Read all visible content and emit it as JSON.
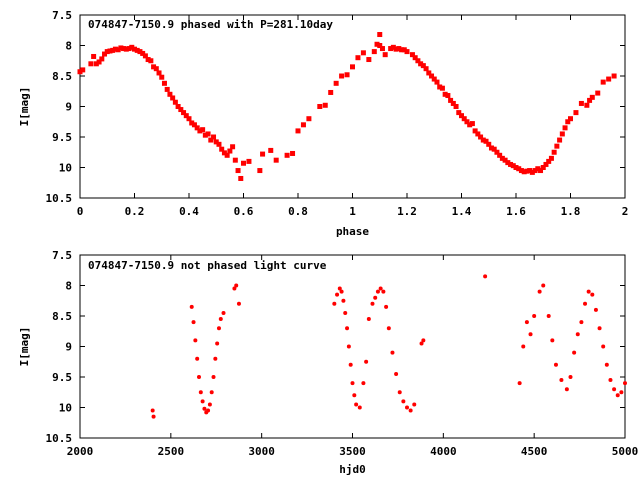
{
  "chart_data": [
    {
      "type": "scatter",
      "title": "074847-7150.9 phased with P=281.10day",
      "xlabel": "phase",
      "ylabel": "I[mag]",
      "xlim": [
        0,
        2
      ],
      "ylim": [
        7.5,
        10.5
      ],
      "y_inverted": true,
      "xticks": [
        "0",
        "0.2",
        "0.4",
        "0.6",
        "0.8",
        "1",
        "1.2",
        "1.4",
        "1.6",
        "1.8",
        "2"
      ],
      "yticks": [
        "7.5",
        "8",
        "8.5",
        "9",
        "9.5",
        "10",
        "10.5"
      ],
      "marker_color": "#ff0000",
      "points": [
        [
          0.0,
          8.43
        ],
        [
          0.01,
          8.4
        ],
        [
          0.04,
          8.3
        ],
        [
          0.05,
          8.18
        ],
        [
          0.06,
          8.3
        ],
        [
          0.07,
          8.27
        ],
        [
          0.08,
          8.22
        ],
        [
          0.09,
          8.14
        ],
        [
          0.1,
          8.1
        ],
        [
          0.11,
          8.09
        ],
        [
          0.12,
          8.08
        ],
        [
          0.13,
          8.06
        ],
        [
          0.14,
          8.07
        ],
        [
          0.15,
          8.04
        ],
        [
          0.16,
          8.05
        ],
        [
          0.17,
          8.06
        ],
        [
          0.18,
          8.05
        ],
        [
          0.19,
          8.03
        ],
        [
          0.2,
          8.06
        ],
        [
          0.21,
          8.08
        ],
        [
          0.22,
          8.1
        ],
        [
          0.23,
          8.13
        ],
        [
          0.24,
          8.17
        ],
        [
          0.25,
          8.23
        ],
        [
          0.26,
          8.25
        ],
        [
          0.27,
          8.35
        ],
        [
          0.28,
          8.38
        ],
        [
          0.29,
          8.45
        ],
        [
          0.3,
          8.52
        ],
        [
          0.31,
          8.62
        ],
        [
          0.32,
          8.72
        ],
        [
          0.33,
          8.8
        ],
        [
          0.34,
          8.86
        ],
        [
          0.35,
          8.93
        ],
        [
          0.36,
          9.0
        ],
        [
          0.37,
          9.05
        ],
        [
          0.38,
          9.1
        ],
        [
          0.39,
          9.15
        ],
        [
          0.4,
          9.2
        ],
        [
          0.41,
          9.27
        ],
        [
          0.42,
          9.3
        ],
        [
          0.43,
          9.35
        ],
        [
          0.44,
          9.4
        ],
        [
          0.45,
          9.38
        ],
        [
          0.46,
          9.47
        ],
        [
          0.47,
          9.45
        ],
        [
          0.48,
          9.55
        ],
        [
          0.49,
          9.5
        ],
        [
          0.5,
          9.58
        ],
        [
          0.51,
          9.62
        ],
        [
          0.52,
          9.7
        ],
        [
          0.53,
          9.76
        ],
        [
          0.54,
          9.8
        ],
        [
          0.55,
          9.73
        ],
        [
          0.56,
          9.66
        ],
        [
          0.57,
          9.88
        ],
        [
          0.58,
          10.05
        ],
        [
          0.59,
          10.18
        ],
        [
          0.6,
          9.93
        ],
        [
          0.62,
          9.9
        ],
        [
          0.66,
          10.05
        ],
        [
          0.67,
          9.78
        ],
        [
          0.7,
          9.72
        ],
        [
          0.72,
          9.88
        ],
        [
          0.76,
          9.8
        ],
        [
          0.78,
          9.77
        ],
        [
          0.8,
          9.4
        ],
        [
          0.82,
          9.3
        ],
        [
          0.84,
          9.2
        ],
        [
          0.88,
          9.0
        ],
        [
          0.9,
          8.98
        ],
        [
          0.92,
          8.77
        ],
        [
          0.94,
          8.62
        ],
        [
          0.96,
          8.5
        ],
        [
          0.98,
          8.48
        ],
        [
          1.0,
          8.35
        ],
        [
          1.02,
          8.2
        ],
        [
          1.04,
          8.12
        ],
        [
          1.06,
          8.23
        ],
        [
          1.08,
          8.1
        ],
        [
          1.09,
          7.98
        ],
        [
          1.1,
          8.0
        ],
        [
          1.1,
          7.82
        ],
        [
          1.11,
          8.05
        ],
        [
          1.12,
          8.15
        ],
        [
          1.14,
          8.05
        ],
        [
          1.15,
          8.03
        ],
        [
          1.16,
          8.06
        ],
        [
          1.17,
          8.05
        ],
        [
          1.18,
          8.07
        ],
        [
          1.19,
          8.07
        ],
        [
          1.2,
          8.1
        ],
        [
          1.22,
          8.15
        ],
        [
          1.23,
          8.2
        ],
        [
          1.24,
          8.25
        ],
        [
          1.25,
          8.3
        ],
        [
          1.26,
          8.33
        ],
        [
          1.27,
          8.38
        ],
        [
          1.28,
          8.45
        ],
        [
          1.29,
          8.5
        ],
        [
          1.3,
          8.55
        ],
        [
          1.31,
          8.6
        ],
        [
          1.32,
          8.68
        ],
        [
          1.33,
          8.7
        ],
        [
          1.34,
          8.8
        ],
        [
          1.35,
          8.82
        ],
        [
          1.36,
          8.9
        ],
        [
          1.37,
          8.95
        ],
        [
          1.38,
          9.0
        ],
        [
          1.39,
          9.1
        ],
        [
          1.4,
          9.15
        ],
        [
          1.41,
          9.2
        ],
        [
          1.42,
          9.25
        ],
        [
          1.43,
          9.3
        ],
        [
          1.44,
          9.28
        ],
        [
          1.45,
          9.4
        ],
        [
          1.46,
          9.45
        ],
        [
          1.47,
          9.5
        ],
        [
          1.48,
          9.55
        ],
        [
          1.49,
          9.57
        ],
        [
          1.5,
          9.62
        ],
        [
          1.51,
          9.68
        ],
        [
          1.52,
          9.7
        ],
        [
          1.53,
          9.75
        ],
        [
          1.54,
          9.8
        ],
        [
          1.55,
          9.85
        ],
        [
          1.56,
          9.88
        ],
        [
          1.57,
          9.92
        ],
        [
          1.58,
          9.95
        ],
        [
          1.59,
          9.97
        ],
        [
          1.6,
          10.0
        ],
        [
          1.61,
          10.02
        ],
        [
          1.62,
          10.05
        ],
        [
          1.63,
          10.07
        ],
        [
          1.64,
          10.06
        ],
        [
          1.65,
          10.05
        ],
        [
          1.66,
          10.08
        ],
        [
          1.67,
          10.05
        ],
        [
          1.68,
          10.02
        ],
        [
          1.69,
          10.05
        ],
        [
          1.7,
          10.0
        ],
        [
          1.71,
          9.95
        ],
        [
          1.72,
          9.9
        ],
        [
          1.73,
          9.85
        ],
        [
          1.74,
          9.75
        ],
        [
          1.75,
          9.65
        ],
        [
          1.76,
          9.55
        ],
        [
          1.77,
          9.45
        ],
        [
          1.78,
          9.35
        ],
        [
          1.79,
          9.25
        ],
        [
          1.8,
          9.2
        ],
        [
          1.82,
          9.1
        ],
        [
          1.84,
          8.95
        ],
        [
          1.86,
          8.98
        ],
        [
          1.87,
          8.9
        ],
        [
          1.88,
          8.85
        ],
        [
          1.9,
          8.78
        ],
        [
          1.92,
          8.6
        ],
        [
          1.94,
          8.55
        ],
        [
          1.96,
          8.5
        ]
      ]
    },
    {
      "type": "scatter",
      "title": "074847-7150.9 not phased light curve",
      "xlabel": "hjd0",
      "ylabel": "I[mag]",
      "xlim": [
        2000,
        5000
      ],
      "ylim": [
        7.5,
        10.5
      ],
      "y_inverted": true,
      "xticks": [
        "2000",
        "2500",
        "3000",
        "3500",
        "4000",
        "4500",
        "5000"
      ],
      "yticks": [
        "7.5",
        "8",
        "8.5",
        "9",
        "9.5",
        "10",
        "10.5"
      ],
      "marker_color": "#ff0000",
      "points": [
        [
          2400,
          10.05
        ],
        [
          2405,
          10.15
        ],
        [
          2615,
          8.35
        ],
        [
          2625,
          8.6
        ],
        [
          2635,
          8.9
        ],
        [
          2645,
          9.2
        ],
        [
          2655,
          9.5
        ],
        [
          2665,
          9.75
        ],
        [
          2675,
          9.9
        ],
        [
          2685,
          10.02
        ],
        [
          2695,
          10.08
        ],
        [
          2705,
          10.05
        ],
        [
          2715,
          9.95
        ],
        [
          2725,
          9.75
        ],
        [
          2735,
          9.5
        ],
        [
          2745,
          9.2
        ],
        [
          2755,
          8.95
        ],
        [
          2765,
          8.7
        ],
        [
          2775,
          8.55
        ],
        [
          2790,
          8.45
        ],
        [
          2850,
          8.05
        ],
        [
          2860,
          8.0
        ],
        [
          2875,
          8.3
        ],
        [
          3400,
          8.3
        ],
        [
          3415,
          8.15
        ],
        [
          3430,
          8.05
        ],
        [
          3440,
          8.1
        ],
        [
          3450,
          8.25
        ],
        [
          3460,
          8.45
        ],
        [
          3470,
          8.7
        ],
        [
          3480,
          9.0
        ],
        [
          3490,
          9.3
        ],
        [
          3500,
          9.6
        ],
        [
          3510,
          9.8
        ],
        [
          3520,
          9.95
        ],
        [
          3540,
          10.0
        ],
        [
          3560,
          9.6
        ],
        [
          3575,
          9.25
        ],
        [
          3590,
          8.55
        ],
        [
          3610,
          8.3
        ],
        [
          3625,
          8.2
        ],
        [
          3640,
          8.1
        ],
        [
          3655,
          8.05
        ],
        [
          3670,
          8.1
        ],
        [
          3685,
          8.35
        ],
        [
          3700,
          8.7
        ],
        [
          3720,
          9.1
        ],
        [
          3740,
          9.45
        ],
        [
          3760,
          9.75
        ],
        [
          3780,
          9.9
        ],
        [
          3800,
          10.0
        ],
        [
          3820,
          10.05
        ],
        [
          3840,
          9.95
        ],
        [
          3880,
          8.95
        ],
        [
          3890,
          8.9
        ],
        [
          4230,
          7.85
        ],
        [
          4420,
          9.6
        ],
        [
          4440,
          9.0
        ],
        [
          4460,
          8.6
        ],
        [
          4480,
          8.8
        ],
        [
          4500,
          8.5
        ],
        [
          4530,
          8.1
        ],
        [
          4550,
          8.0
        ],
        [
          4580,
          8.5
        ],
        [
          4600,
          8.9
        ],
        [
          4620,
          9.3
        ],
        [
          4650,
          9.55
        ],
        [
          4680,
          9.7
        ],
        [
          4700,
          9.5
        ],
        [
          4720,
          9.1
        ],
        [
          4740,
          8.8
        ],
        [
          4760,
          8.6
        ],
        [
          4780,
          8.3
        ],
        [
          4800,
          8.1
        ],
        [
          4820,
          8.15
        ],
        [
          4840,
          8.4
        ],
        [
          4860,
          8.7
        ],
        [
          4880,
          9.0
        ],
        [
          4900,
          9.3
        ],
        [
          4920,
          9.55
        ],
        [
          4940,
          9.7
        ],
        [
          4960,
          9.8
        ],
        [
          4980,
          9.75
        ],
        [
          5000,
          9.6
        ]
      ]
    }
  ]
}
